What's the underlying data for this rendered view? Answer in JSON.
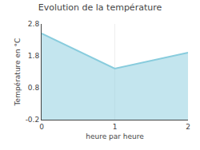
{
  "chart_data": {
    "type": "area",
    "title": "Evolution de la température",
    "xlabel": "heure par heure",
    "ylabel": "Température en °C",
    "x": [
      0,
      1,
      2
    ],
    "values": [
      2.5,
      1.4,
      1.9
    ],
    "color": "#88ccdd",
    "xlim": [
      0,
      2
    ],
    "ylim": [
      -0.2,
      2.8
    ],
    "xticks": [
      0,
      1,
      2
    ],
    "yticks": [
      -0.2,
      0.8,
      1.8,
      2.8
    ],
    "grid": "x"
  }
}
